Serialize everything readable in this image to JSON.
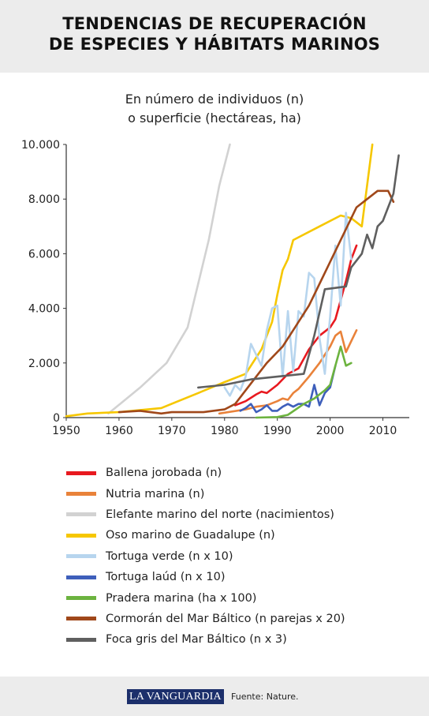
{
  "header": {
    "title_line1": "TENDENCIAS DE RECUPERACIÓN",
    "title_line2": "DE ESPECIES Y HÁBITATS MARINOS"
  },
  "subtitle": {
    "line1": "En número de individuos (n)",
    "line2": "o superficie (hectáreas, ha)"
  },
  "chart_data": {
    "type": "line",
    "xlim": [
      1950,
      2015
    ],
    "ylim": [
      0,
      10000
    ],
    "x_ticks": [
      "1950",
      "1960",
      "1970",
      "1980",
      "1990",
      "2000",
      "2010"
    ],
    "y_ticks": [
      "0",
      "2.000",
      "4.000",
      "6.000",
      "8.000",
      "10.000"
    ],
    "grid": false,
    "legend_position": "bottom",
    "series": [
      {
        "name": "Ballena jorobada (n)",
        "color": "#e8191f",
        "points": [
          [
            1982,
            450
          ],
          [
            1984,
            600
          ],
          [
            1986,
            850
          ],
          [
            1987,
            950
          ],
          [
            1988,
            900
          ],
          [
            1990,
            1200
          ],
          [
            1992,
            1600
          ],
          [
            1994,
            1800
          ],
          [
            1996,
            2500
          ],
          [
            1998,
            3000
          ],
          [
            2000,
            3300
          ],
          [
            2001,
            3600
          ],
          [
            2002,
            4300
          ],
          [
            2003,
            5000
          ],
          [
            2004,
            5800
          ],
          [
            2005,
            6300
          ]
        ]
      },
      {
        "name": "Nutria marina (n)",
        "color": "#e9823a",
        "points": [
          [
            1979,
            150
          ],
          [
            1984,
            300
          ],
          [
            1986,
            400
          ],
          [
            1988,
            450
          ],
          [
            1990,
            600
          ],
          [
            1991,
            700
          ],
          [
            1992,
            650
          ],
          [
            1993,
            900
          ],
          [
            1994,
            1050
          ],
          [
            1996,
            1500
          ],
          [
            1998,
            2000
          ],
          [
            2000,
            2600
          ],
          [
            2001,
            3000
          ],
          [
            2002,
            3150
          ],
          [
            2003,
            2400
          ],
          [
            2005,
            3200
          ]
        ]
      },
      {
        "name": "Elefante marino del norte (nacimientos)",
        "color": "#d2d2d2",
        "points": [
          [
            1958,
            150
          ],
          [
            1964,
            1100
          ],
          [
            1969,
            2000
          ],
          [
            1973,
            3300
          ],
          [
            1977,
            6500
          ],
          [
            1979,
            8500
          ],
          [
            1981,
            10000
          ]
        ]
      },
      {
        "name": "Oso marino de Guadalupe (n)",
        "color": "#f6c700",
        "points": [
          [
            1950,
            50
          ],
          [
            1954,
            150
          ],
          [
            1960,
            200
          ],
          [
            1968,
            350
          ],
          [
            1975,
            900
          ],
          [
            1980,
            1300
          ],
          [
            1984,
            1600
          ],
          [
            1987,
            2500
          ],
          [
            1989,
            3500
          ],
          [
            1990,
            4500
          ],
          [
            1991,
            5400
          ],
          [
            1992,
            5800
          ],
          [
            1993,
            6500
          ],
          [
            1998,
            7000
          ],
          [
            2002,
            7400
          ],
          [
            2004,
            7300
          ],
          [
            2006,
            7000
          ],
          [
            2008,
            10000
          ]
        ]
      },
      {
        "name": "Tortuga verde (n x 10)",
        "color": "#b7d5ee",
        "points": [
          [
            1980,
            1100
          ],
          [
            1981,
            800
          ],
          [
            1982,
            1200
          ],
          [
            1983,
            1000
          ],
          [
            1984,
            1500
          ],
          [
            1985,
            2700
          ],
          [
            1986,
            2300
          ],
          [
            1987,
            1900
          ],
          [
            1988,
            3200
          ],
          [
            1989,
            4000
          ],
          [
            1990,
            4100
          ],
          [
            1991,
            1500
          ],
          [
            1992,
            3900
          ],
          [
            1993,
            1700
          ],
          [
            1994,
            3900
          ],
          [
            1995,
            3700
          ],
          [
            1996,
            5300
          ],
          [
            1997,
            5100
          ],
          [
            1998,
            2900
          ],
          [
            1999,
            1600
          ],
          [
            2000,
            3700
          ],
          [
            2001,
            6300
          ],
          [
            2002,
            4100
          ],
          [
            2003,
            7500
          ],
          [
            2004,
            5800
          ]
        ]
      },
      {
        "name": "Tortuga laúd (n x 10)",
        "color": "#3e5fbb",
        "points": [
          [
            1983,
            250
          ],
          [
            1984,
            350
          ],
          [
            1985,
            500
          ],
          [
            1986,
            200
          ],
          [
            1987,
            300
          ],
          [
            1988,
            450
          ],
          [
            1989,
            250
          ],
          [
            1990,
            250
          ],
          [
            1991,
            400
          ],
          [
            1992,
            500
          ],
          [
            1993,
            400
          ],
          [
            1994,
            500
          ],
          [
            1995,
            500
          ],
          [
            1996,
            400
          ],
          [
            1997,
            1200
          ],
          [
            1998,
            450
          ],
          [
            1999,
            900
          ],
          [
            2000,
            1100
          ],
          [
            2001,
            1900
          ]
        ]
      },
      {
        "name": "Pradera marina (ha x 100)",
        "color": "#6cb33f",
        "points": [
          [
            1986,
            0
          ],
          [
            1990,
            20
          ],
          [
            1992,
            100
          ],
          [
            1995,
            500
          ],
          [
            1997,
            700
          ],
          [
            1999,
            1000
          ],
          [
            2000,
            1200
          ],
          [
            2002,
            2600
          ],
          [
            2003,
            1900
          ],
          [
            2004,
            2000
          ]
        ]
      },
      {
        "name": "Cormorán del Mar Báltico (n parejas x 20)",
        "color": "#a0481a",
        "points": [
          [
            1960,
            200
          ],
          [
            1964,
            250
          ],
          [
            1968,
            150
          ],
          [
            1970,
            200
          ],
          [
            1976,
            200
          ],
          [
            1980,
            300
          ],
          [
            1982,
            500
          ],
          [
            1984,
            1000
          ],
          [
            1986,
            1500
          ],
          [
            1988,
            2000
          ],
          [
            1991,
            2600
          ],
          [
            1993,
            3200
          ],
          [
            1996,
            4100
          ],
          [
            1998,
            4900
          ],
          [
            2000,
            5700
          ],
          [
            2002,
            6500
          ],
          [
            2005,
            7700
          ],
          [
            2007,
            8000
          ],
          [
            2009,
            8300
          ],
          [
            2011,
            8300
          ],
          [
            2012,
            7900
          ]
        ]
      },
      {
        "name": "Foca gris del Mar Báltico (n x 3)",
        "color": "#5f5f5f",
        "points": [
          [
            1975,
            1100
          ],
          [
            1980,
            1200
          ],
          [
            1985,
            1400
          ],
          [
            1990,
            1500
          ],
          [
            1995,
            1600
          ],
          [
            1997,
            3000
          ],
          [
            1999,
            4700
          ],
          [
            2003,
            4800
          ],
          [
            2004,
            5500
          ],
          [
            2006,
            6000
          ],
          [
            2007,
            6700
          ],
          [
            2008,
            6200
          ],
          [
            2009,
            7000
          ],
          [
            2010,
            7200
          ],
          [
            2012,
            8200
          ],
          [
            2013,
            9600
          ]
        ]
      }
    ]
  },
  "footer": {
    "brand": "LA VANGUARDIA",
    "source": "Fuente: Nature."
  }
}
